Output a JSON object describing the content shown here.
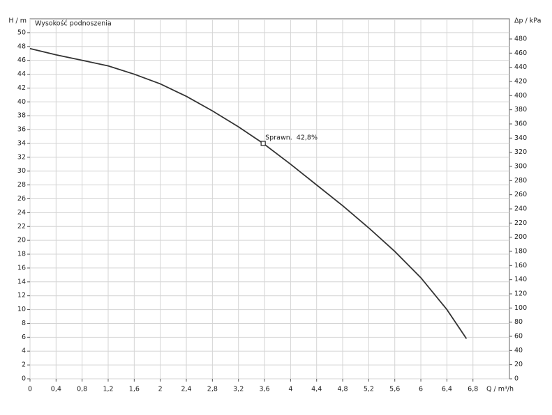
{
  "chart_data": {
    "type": "line",
    "title": "Wysokość podnoszenia",
    "ylabel": "H / m",
    "y2label": "Δp / kPa",
    "xlabel": "Q / m³/h",
    "x": [
      0,
      0.4,
      0.8,
      1.2,
      1.6,
      2,
      2.4,
      2.8,
      3.2,
      3.58,
      4,
      4.4,
      4.8,
      5.2,
      5.6,
      6,
      6.4,
      6.7
    ],
    "series": [
      {
        "color": "#333333",
        "values": [
          47.7,
          46.8,
          46,
          45.2,
          44,
          42.6,
          40.8,
          38.7,
          36.4,
          34,
          31,
          28,
          25,
          21.8,
          18.4,
          14.6,
          10,
          5.8
        ]
      }
    ],
    "annotation": {
      "x": 3.58,
      "y": 34,
      "label": "Sprawn.  42,8%"
    },
    "xlim": [
      0,
      7.36
    ],
    "xticks": [
      0,
      {
        "value": 0.4,
        "label": "0,4"
      },
      {
        "value": 0.8,
        "label": "0,8"
      },
      {
        "value": 1.2,
        "label": "1,2"
      },
      {
        "value": 1.6,
        "label": "1,6"
      },
      2,
      {
        "value": 2.4,
        "label": "2,4"
      },
      {
        "value": 2.8,
        "label": "2,8"
      },
      {
        "value": 3.2,
        "label": "3,2"
      },
      {
        "value": 3.6,
        "label": "3,6"
      },
      4,
      {
        "value": 4.4,
        "label": "4,4"
      },
      {
        "value": 4.8,
        "label": "4,8"
      },
      {
        "value": 5.2,
        "label": "5,2"
      },
      {
        "value": 5.6,
        "label": "5,6"
      },
      6,
      {
        "value": 6.4,
        "label": "6,4"
      },
      {
        "value": 6.8,
        "label": "6,8"
      }
    ],
    "ylim": [
      0,
      52
    ],
    "yticks": [
      0,
      2,
      4,
      6,
      8,
      10,
      12,
      14,
      16,
      18,
      20,
      22,
      24,
      26,
      28,
      30,
      32,
      34,
      36,
      38,
      40,
      42,
      44,
      46,
      48,
      50
    ],
    "y2lim": [
      0,
      508.5
    ],
    "y2ticks": [
      0,
      20,
      40,
      60,
      80,
      100,
      120,
      140,
      160,
      180,
      200,
      220,
      240,
      260,
      280,
      300,
      320,
      340,
      360,
      380,
      400,
      420,
      440,
      460,
      480
    ],
    "grid": true
  }
}
